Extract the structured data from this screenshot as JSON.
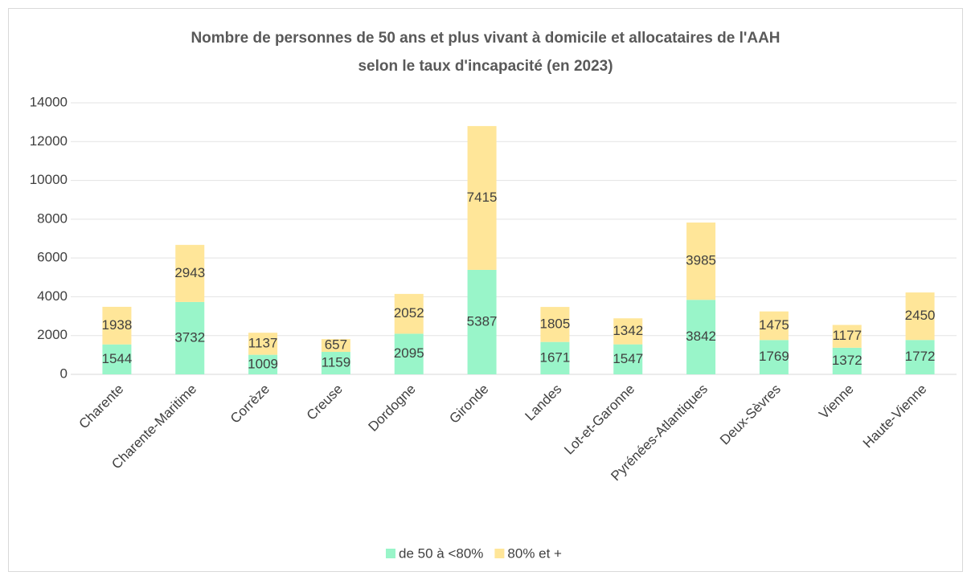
{
  "chart_data": {
    "type": "stacked_bar",
    "title": [
      "Nombre de personnes de 50 ans et plus vivant à domicile et allocataires de l'AAH",
      "selon le taux d'incapacité (en 2023)"
    ],
    "categories": [
      "Charente",
      "Charente-Maritime",
      "Corrèze",
      "Creuse",
      "Dordogne",
      "Gironde",
      "Landes",
      "Lot-et-Garonne",
      "Pyrénées-Atlantiques",
      "Deux-Sèvres",
      "Vienne",
      "Haute-Vienne"
    ],
    "series": [
      {
        "name": "de 50 à <80%",
        "color": "#99f5c9",
        "values": [
          1544,
          3732,
          1009,
          1159,
          2095,
          5387,
          1671,
          1547,
          3842,
          1769,
          1372,
          1772
        ]
      },
      {
        "name": "80% et +",
        "color": "#ffe699",
        "values": [
          1938,
          2943,
          1137,
          657,
          2052,
          7415,
          1805,
          1342,
          3985,
          1475,
          1177,
          2450
        ]
      }
    ],
    "ylim": [
      0,
      14000
    ],
    "yticks": [
      0,
      2000,
      4000,
      6000,
      8000,
      10000,
      12000,
      14000
    ],
    "grid": true,
    "legend": "bottom"
  }
}
